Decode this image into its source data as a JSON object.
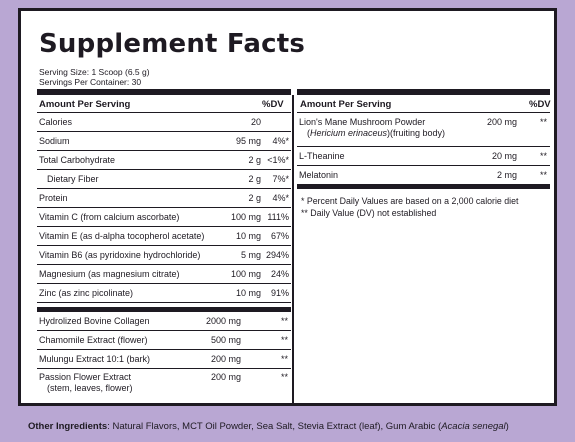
{
  "title": "Supplement Facts",
  "serving_size": "Serving Size: 1 Scoop (6.5 g)",
  "servings_per_container": "Servings Per Container: 30",
  "left_header": {
    "amount": "Amount Per Serving",
    "dv": "%DV"
  },
  "left_rows": [
    {
      "name": "Calories",
      "amount": "20",
      "dv": ""
    },
    {
      "name": "Sodium",
      "amount": "95 mg",
      "dv": "4%*"
    },
    {
      "name": "Total Carbohydrate",
      "amount": "2 g",
      "dv": "<1%*"
    },
    {
      "name": "Dietary Fiber",
      "amount": "2 g",
      "dv": "7%*"
    },
    {
      "name": "Protein",
      "amount": "2 g",
      "dv": "4%*"
    },
    {
      "name": "Vitamin C (from calcium ascorbate)",
      "amount": "100 mg",
      "dv": "111%"
    },
    {
      "name": "Vitamin E (as d-alpha tocopherol acetate)",
      "amount": "10 mg",
      "dv": "67%"
    },
    {
      "name": "Vitamin B6 (as pyridoxine hydrochloride)",
      "amount": "5 mg",
      "dv": "294%"
    },
    {
      "name": "Magnesium (as magnesium citrate)",
      "amount": "100 mg",
      "dv": "24%"
    },
    {
      "name": "Zinc (as zinc picolinate)",
      "amount": "10 mg",
      "dv": "91%"
    }
  ],
  "left_rows2": [
    {
      "name": "Hydrolized Bovine Collagen",
      "amount": "2000 mg",
      "dv": "**"
    },
    {
      "name": "Chamomile Extract (flower)",
      "amount": "500 mg",
      "dv": "**"
    },
    {
      "name": "Mulungu Extract 10:1 (bark)",
      "amount": "200 mg",
      "dv": "**"
    }
  ],
  "passion_flower": {
    "line1": "Passion Flower Extract",
    "line2": "(stem, leaves, flower)",
    "amount": "200 mg",
    "dv": "**"
  },
  "right_header": {
    "amount": "Amount Per Serving",
    "dv": "%DV"
  },
  "lions_mane": {
    "line1": "Lion's Mane Mushroom Powder",
    "latin": "Hericium erinaceus",
    "line2_rest": "(fruiting body)",
    "amount": "200 mg",
    "dv": "**"
  },
  "right_rows": [
    {
      "name": "L-Theanine",
      "amount": "20 mg",
      "dv": "**"
    },
    {
      "name": "Melatonin",
      "amount": "2 mg",
      "dv": "**"
    }
  ],
  "footnotes": [
    "* Percent Daily Values are based on a 2,000 calorie diet",
    "** Daily Value (DV) not established"
  ],
  "other_ingredients": {
    "label": "Other Ingredients",
    "text": ": Natural Flavors, MCT Oil Powder, Sea Salt, Stevia Extract (leaf), Gum Arabic (",
    "latin": "Acacia senegal",
    "close": ")"
  },
  "colors": {
    "background": "#b9a7d3",
    "panel": "#ffffff",
    "ink": "#1e1a22"
  }
}
